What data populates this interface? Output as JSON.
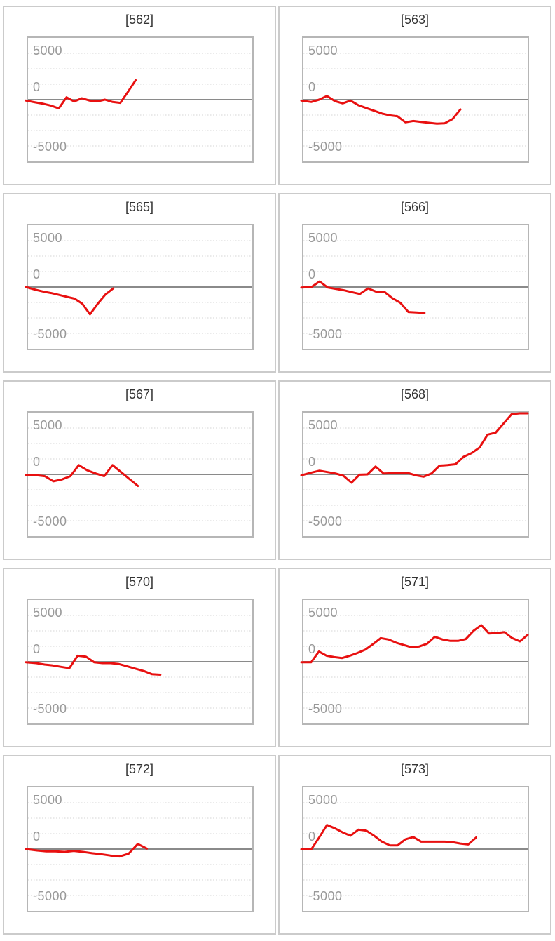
{
  "page": {
    "background_color": "#ffffff",
    "description_colors": {
      "card_border": "#cbcbcb",
      "plot_border": "#b6b6b6",
      "grid_dotted": "#d4d4d4",
      "zero_line": "#8a8a8a",
      "series_red": "#e81010",
      "tick_label": "#999999",
      "title_text": "#333333"
    }
  },
  "axis": {
    "tick_labels": [
      "5000",
      "0",
      "-5000"
    ],
    "tick_values": [
      5000,
      0,
      -5000
    ],
    "ylim": [
      -6700,
      6700
    ],
    "grid_interval": 1667,
    "grid_style": "dotted",
    "zero_line": "solid"
  },
  "chart_data": [
    {
      "type": "line",
      "title": "[562]",
      "series_color": "#e81010",
      "x_span_fraction": 0.48,
      "values": [
        -100,
        -300,
        -450,
        -650,
        -950,
        250,
        -200,
        150,
        -100,
        -200,
        0,
        -250,
        -350,
        850,
        2100
      ]
    },
    {
      "type": "line",
      "title": "[563]",
      "series_color": "#e81010",
      "x_span_fraction": 0.7,
      "values": [
        -100,
        -250,
        0,
        400,
        -150,
        -400,
        -100,
        -600,
        -900,
        -1200,
        -1500,
        -1700,
        -1800,
        -2450,
        -2300,
        -2400,
        -2500,
        -2600,
        -2550,
        -2100,
        -1050
      ]
    },
    {
      "type": "line",
      "title": "[565]",
      "series_color": "#e81010",
      "x_span_fraction": 0.38,
      "values": [
        0,
        -300,
        -500,
        -650,
        -850,
        -1050,
        -1250,
        -1800,
        -2950,
        -1800,
        -800,
        -150
      ]
    },
    {
      "type": "line",
      "title": "[566]",
      "series_color": "#e81010",
      "x_span_fraction": 0.54,
      "values": [
        -50,
        0,
        600,
        -50,
        -200,
        -350,
        -550,
        -750,
        -150,
        -500,
        -500,
        -1200,
        -1700,
        -2700,
        -2750,
        -2800
      ]
    },
    {
      "type": "line",
      "title": "[567]",
      "series_color": "#e81010",
      "x_span_fraction": 0.49,
      "values": [
        -50,
        -100,
        -200,
        -750,
        -550,
        -200,
        1000,
        450,
        100,
        -200,
        1000,
        250,
        -500,
        -1250
      ]
    },
    {
      "type": "line",
      "title": "[568]",
      "series_color": "#e81010",
      "x_span_fraction": 1.0,
      "values": [
        -100,
        200,
        400,
        250,
        100,
        -150,
        -900,
        -30,
        0,
        850,
        100,
        120,
        170,
        170,
        -100,
        -250,
        100,
        950,
        1000,
        1100,
        1900,
        2300,
        2900,
        4300,
        4500,
        5500,
        6500,
        6700,
        6700
      ]
    },
    {
      "type": "line",
      "title": "[570]",
      "series_color": "#e81010",
      "x_span_fraction": 0.59,
      "values": [
        -50,
        -150,
        -300,
        -400,
        -550,
        -700,
        650,
        550,
        -50,
        -150,
        -150,
        -250,
        -500,
        -750,
        -1000,
        -1350,
        -1400
      ]
    },
    {
      "type": "line",
      "title": "[571]",
      "series_color": "#e81010",
      "x_span_fraction": 1.0,
      "values": [
        -50,
        -50,
        1100,
        650,
        500,
        400,
        650,
        950,
        1300,
        1900,
        2550,
        2400,
        2050,
        1800,
        1550,
        1650,
        1950,
        2700,
        2400,
        2250,
        2250,
        2450,
        3350,
        3950,
        3050,
        3100,
        3200,
        2550,
        2200,
        2900
      ]
    },
    {
      "type": "line",
      "title": "[572]",
      "series_color": "#e81010",
      "x_span_fraction": 0.53,
      "values": [
        0,
        -150,
        -250,
        -250,
        -300,
        -200,
        -300,
        -450,
        -550,
        -700,
        -800,
        -500,
        550,
        50
      ]
    },
    {
      "type": "line",
      "title": "[573]",
      "series_color": "#e81010",
      "x_span_fraction": 0.77,
      "values": [
        -30,
        -30,
        1250,
        2600,
        2250,
        1800,
        1450,
        2100,
        2000,
        1450,
        800,
        400,
        400,
        1050,
        1300,
        800,
        800,
        800,
        800,
        750,
        600,
        500,
        1250
      ]
    }
  ]
}
